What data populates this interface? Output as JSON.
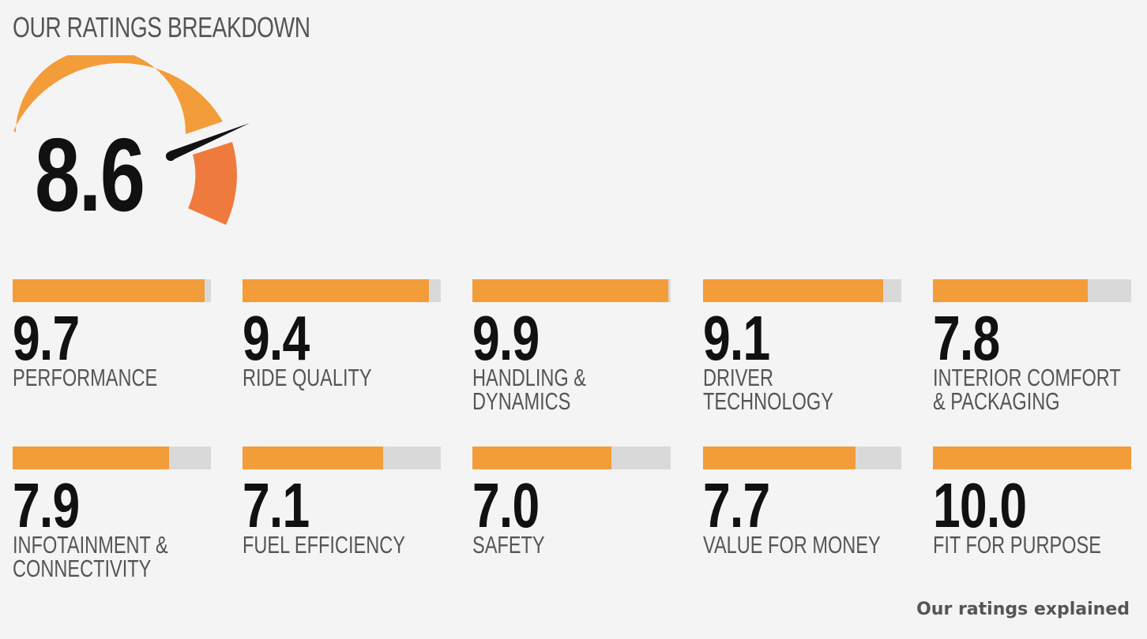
{
  "header": {
    "title": "OUR RATINGS BREAKDOWN"
  },
  "overall": {
    "score": "8.6",
    "value": 8.6,
    "max": 10
  },
  "colors": {
    "bar_fill": "#f39c3a",
    "bar_track": "#d9d9d9",
    "gauge_arc": "#f39c3a",
    "gauge_accent": "#ef7a3d",
    "needle": "#111111"
  },
  "ratings": [
    {
      "score": "9.7",
      "value": 9.7,
      "label": "PERFORMANCE"
    },
    {
      "score": "9.4",
      "value": 9.4,
      "label": "RIDE QUALITY"
    },
    {
      "score": "9.9",
      "value": 9.9,
      "label": "HANDLING & DYNAMICS"
    },
    {
      "score": "9.1",
      "value": 9.1,
      "label": "DRIVER TECHNOLOGY"
    },
    {
      "score": "7.8",
      "value": 7.8,
      "label": "INTERIOR COMFORT & PACKAGING"
    },
    {
      "score": "7.9",
      "value": 7.9,
      "label": "INFOTAINMENT & CONNECTIVITY"
    },
    {
      "score": "7.1",
      "value": 7.1,
      "label": "FUEL EFFICIENCY"
    },
    {
      "score": "7.0",
      "value": 7.0,
      "label": "SAFETY"
    },
    {
      "score": "7.7",
      "value": 7.7,
      "label": "VALUE FOR MONEY"
    },
    {
      "score": "10.0",
      "value": 10.0,
      "label": "FIT FOR PURPOSE"
    }
  ],
  "footer": {
    "explained_link": "Our ratings explained"
  }
}
